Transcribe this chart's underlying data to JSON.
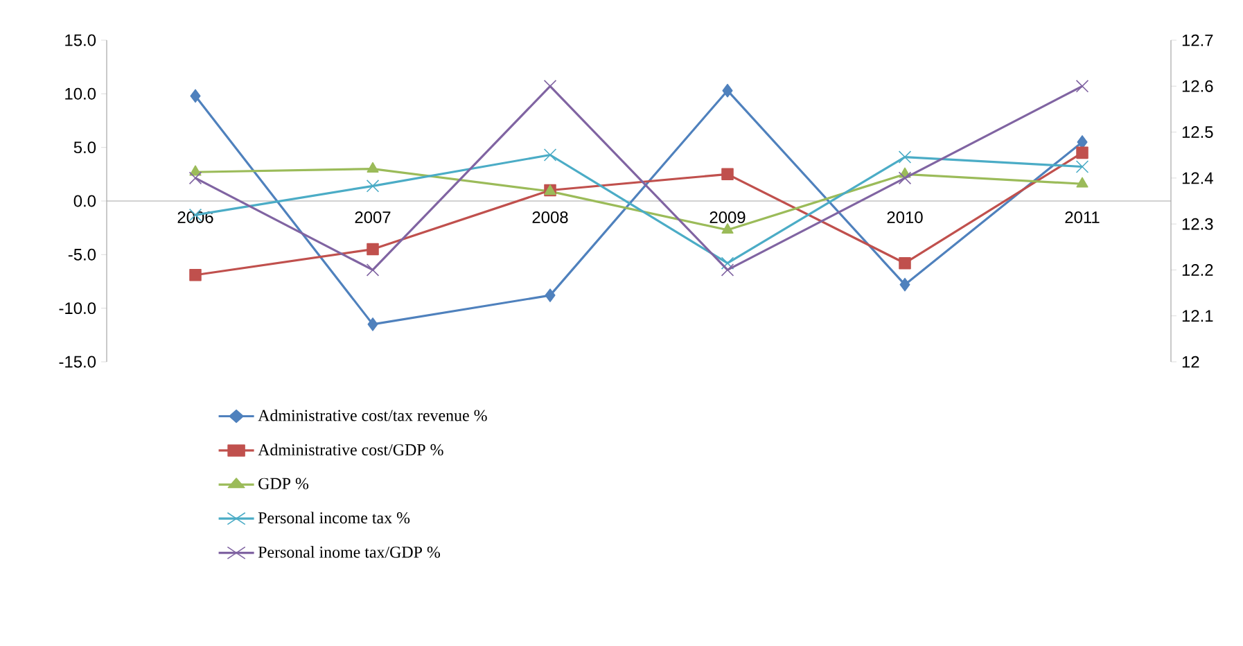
{
  "chart_data": {
    "type": "line",
    "categories": [
      "2006",
      "2007",
      "2008",
      "2009",
      "2010",
      "2011"
    ],
    "series": [
      {
        "name": "Administrative cost/tax revenue %",
        "color": "#4f81bd",
        "marker": "diamond",
        "values": [
          9.8,
          -11.5,
          -8.8,
          10.3,
          -7.8,
          5.5
        ]
      },
      {
        "name": "Administrative cost/GDP %",
        "color": "#c0504d",
        "marker": "square",
        "values": [
          -6.9,
          -4.5,
          1.0,
          2.5,
          -5.8,
          4.5
        ]
      },
      {
        "name": "GDP %",
        "color": "#9bbb59",
        "marker": "triangle",
        "values": [
          2.7,
          3.0,
          0.9,
          -2.7,
          2.5,
          1.6
        ]
      },
      {
        "name": "Personal income tax %",
        "color": "#4bacc6",
        "marker": "cross",
        "values": [
          -1.3,
          1.4,
          4.3,
          -5.8,
          4.1,
          3.2
        ]
      },
      {
        "name": "Personal inome tax/GDP %",
        "color": "#8064a2",
        "marker": "cross",
        "axis": "y2",
        "values": [
          12.4,
          12.2,
          12.6,
          12.2,
          12.4,
          12.6
        ]
      }
    ],
    "ylim": [
      -15,
      15
    ],
    "yticks": [
      {
        "value": -15,
        "label": "-15.0"
      },
      {
        "value": -10,
        "label": "-10.0"
      },
      {
        "value": -5,
        "label": "-5.0"
      },
      {
        "value": 0,
        "label": "0.0"
      },
      {
        "value": 5,
        "label": "5.0"
      },
      {
        "value": 10,
        "label": "10.0"
      },
      {
        "value": 15,
        "label": "15.0"
      }
    ],
    "y2lim": [
      12,
      12.7
    ],
    "y2ticks": [
      12,
      12.1,
      12.2,
      12.3,
      12.4,
      12.5,
      12.6,
      12.7
    ],
    "legend": "bottom",
    "grid": false,
    "line_style": "solid"
  }
}
